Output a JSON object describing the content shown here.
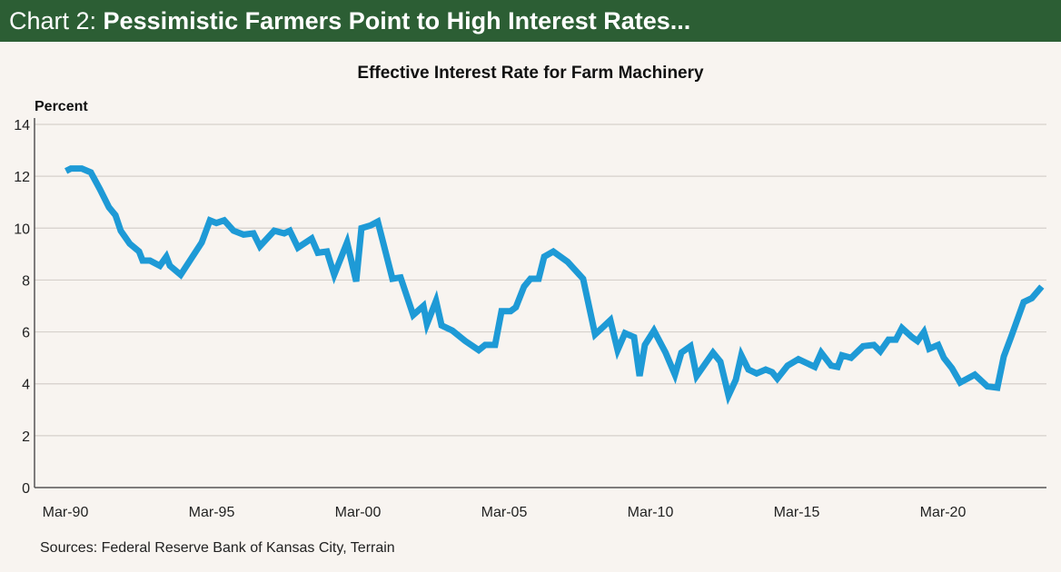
{
  "header": {
    "prefix": "Chart 2: ",
    "title": "Pessimistic Farmers Point to High Interest Rates..."
  },
  "sources": "Sources: Federal Reserve Bank of Kansas City, Terrain",
  "colors": {
    "header": "#2c5e34",
    "line": "#1e9ad6",
    "background": "#f8f4f0",
    "grid": "#d6d0cb"
  },
  "chart_data": {
    "type": "line",
    "title": "Effective Interest Rate for Farm Machinery",
    "ylabel": "Percent",
    "xlabel": "",
    "ylim": [
      0,
      14
    ],
    "yticks": [
      0,
      2,
      4,
      6,
      8,
      10,
      12,
      14
    ],
    "xlim": [
      1990.17,
      2023.6
    ],
    "xticks": [
      {
        "x": 1990.17,
        "label": "Mar-90"
      },
      {
        "x": 1995.17,
        "label": "Mar-95"
      },
      {
        "x": 2000.17,
        "label": "Mar-00"
      },
      {
        "x": 2005.17,
        "label": "Mar-05"
      },
      {
        "x": 2010.17,
        "label": "Mar-10"
      },
      {
        "x": 2015.17,
        "label": "Mar-15"
      },
      {
        "x": 2020.17,
        "label": "Mar-20"
      }
    ],
    "grid": true,
    "series": [
      {
        "x": [
          1990.19,
          1990.36,
          1990.73,
          1991.04,
          1991.35,
          1991.66,
          1991.88,
          1992.06,
          1992.37,
          1992.69,
          1992.81,
          1993.06,
          1993.4,
          1993.62,
          1993.74,
          1994.11,
          1994.83,
          1995.11,
          1995.33,
          1995.6,
          1995.92,
          1996.26,
          1996.6,
          1996.82,
          1997.31,
          1997.65,
          1997.84,
          1998.12,
          1998.59,
          1998.8,
          1999.11,
          1999.36,
          1999.8,
          2000.11,
          2000.29,
          2000.6,
          2000.85,
          2001.35,
          2001.63,
          2002.06,
          2002.41,
          2002.53,
          2002.84,
          2003.03,
          2003.4,
          2003.84,
          2004.3,
          2004.52,
          2004.86,
          2005.08,
          2005.39,
          2005.57,
          2005.85,
          2006.07,
          2006.35,
          2006.54,
          2006.85,
          2007.34,
          2007.87,
          2008.28,
          2008.8,
          2009.05,
          2009.3,
          2009.61,
          2009.8,
          2009.98,
          2010.29,
          2010.69,
          2011.01,
          2011.23,
          2011.54,
          2011.75,
          2012.31,
          2012.56,
          2012.84,
          2013.09,
          2013.28,
          2013.52,
          2013.8,
          2014.11,
          2014.33,
          2014.51,
          2014.86,
          2015.23,
          2015.79,
          2016.01,
          2016.35,
          2016.57,
          2016.72,
          2017.03,
          2017.44,
          2017.81,
          2018.03,
          2018.31,
          2018.56,
          2018.77,
          2019.11,
          2019.3,
          2019.52,
          2019.7,
          2020.01,
          2020.2,
          2020.48,
          2020.76,
          2021.26,
          2021.69,
          2022.03,
          2022.25,
          2022.5,
          2022.93,
          2023.21,
          2023.55
        ],
        "y": [
          12.2,
          12.3,
          12.3,
          12.15,
          11.5,
          10.8,
          10.5,
          9.9,
          9.4,
          9.1,
          8.75,
          8.75,
          8.55,
          8.9,
          8.55,
          8.2,
          9.45,
          10.3,
          10.2,
          10.3,
          9.9,
          9.75,
          9.8,
          9.3,
          9.9,
          9.8,
          9.9,
          9.25,
          9.6,
          9.05,
          9.1,
          8.2,
          9.45,
          7.95,
          10.0,
          10.1,
          10.25,
          8.05,
          8.1,
          6.65,
          7.0,
          6.3,
          7.2,
          6.25,
          6.05,
          5.65,
          5.3,
          5.5,
          5.5,
          6.8,
          6.8,
          6.95,
          7.75,
          8.05,
          8.05,
          8.9,
          9.1,
          8.7,
          8.05,
          5.9,
          6.45,
          5.3,
          5.95,
          5.8,
          4.3,
          5.5,
          6.05,
          5.2,
          4.35,
          5.2,
          5.45,
          4.3,
          5.2,
          4.85,
          3.55,
          4.15,
          5.1,
          4.55,
          4.4,
          4.55,
          4.45,
          4.2,
          4.7,
          4.95,
          4.65,
          5.2,
          4.7,
          4.65,
          5.1,
          5.0,
          5.45,
          5.5,
          5.25,
          5.7,
          5.7,
          6.15,
          5.8,
          5.65,
          6.0,
          5.35,
          5.5,
          5.0,
          4.6,
          4.05,
          4.35,
          3.9,
          3.85,
          5.05,
          5.8,
          7.15,
          7.3,
          7.75
        ]
      }
    ]
  }
}
